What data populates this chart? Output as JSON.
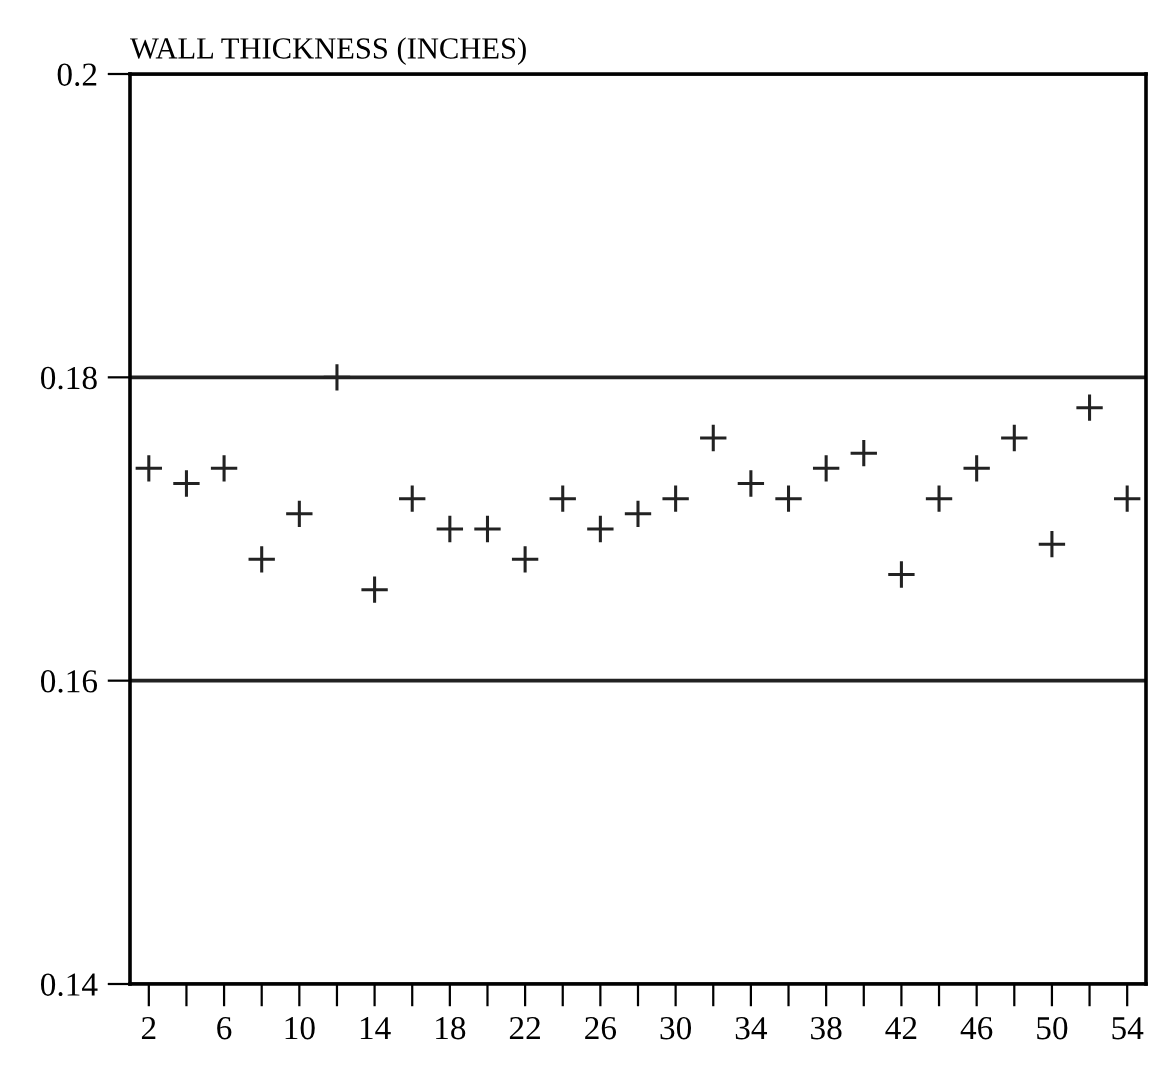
{
  "chart_data": {
    "type": "scatter",
    "ylabel": "WALL THICKNESS (INCHES)",
    "x": [
      2,
      4,
      6,
      8,
      10,
      12,
      14,
      16,
      18,
      20,
      22,
      24,
      26,
      28,
      30,
      32,
      34,
      36,
      38,
      40,
      42,
      44,
      46,
      48,
      50,
      52,
      54
    ],
    "values": [
      0.174,
      0.173,
      0.174,
      0.168,
      0.171,
      0.18,
      0.166,
      0.172,
      0.17,
      0.17,
      0.168,
      0.172,
      0.17,
      0.171,
      0.172,
      0.176,
      0.173,
      0.172,
      0.174,
      0.175,
      0.167,
      0.172,
      0.174,
      0.176,
      0.169,
      0.178,
      0.172
    ],
    "color": "#222222",
    "marker": "cross",
    "xlim": [
      1,
      55
    ],
    "xticks": [
      2,
      {
        "value": 4,
        "label": null
      },
      6,
      {
        "value": 8,
        "label": null
      },
      10,
      {
        "value": 12,
        "label": null
      },
      14,
      {
        "value": 16,
        "label": null
      },
      18,
      {
        "value": 20,
        "label": null
      },
      22,
      {
        "value": 24,
        "label": null
      },
      26,
      {
        "value": 28,
        "label": null
      },
      30,
      {
        "value": 32,
        "label": null
      },
      34,
      {
        "value": 36,
        "label": null
      },
      38,
      {
        "value": 40,
        "label": null
      },
      42,
      {
        "value": 44,
        "label": null
      },
      46,
      {
        "value": 48,
        "label": null
      },
      50,
      {
        "value": 52,
        "label": null
      },
      54
    ],
    "ylim": [
      0.14,
      0.2
    ],
    "yticks": [
      0.14,
      0.16,
      0.18,
      0.2
    ],
    "grid": "y"
  }
}
